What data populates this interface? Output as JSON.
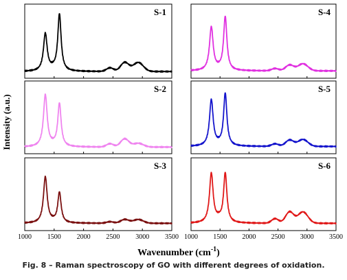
{
  "chart_data": {
    "type": "line",
    "xlabel": "Wavenumber (cm-1)",
    "xlabel_base": "Wavenumber (cm",
    "xlabel_sup": "-1",
    "xlabel_close": ")",
    "ylabel": "Intensity (a.u.)",
    "xlim": [
      1000,
      3500
    ],
    "xticks": [
      "1000",
      "1500",
      "2000",
      "2500",
      "3000",
      "3500"
    ],
    "grid": false,
    "panels": [
      {
        "id": "S-1",
        "label": "S-1",
        "color": "#000000",
        "d_height": 0.62,
        "g_height": 0.92,
        "baseline": 0.04,
        "twoD": 0.14,
        "dg": 0.14,
        "bump": 0.03
      },
      {
        "id": "S-2",
        "label": "S-2",
        "color": "#ef84ef",
        "d_height": 0.86,
        "g_height": 0.72,
        "baseline": 0.04,
        "twoD": 0.13,
        "dg": 0.06,
        "bump": 0.02
      },
      {
        "id": "S-3",
        "label": "S-3",
        "color": "#7a1010",
        "d_height": 0.78,
        "g_height": 0.53,
        "baseline": 0.05,
        "twoD": 0.06,
        "dg": 0.06,
        "bump": 0.02
      },
      {
        "id": "S-4",
        "label": "S-4",
        "color": "#e030e0",
        "d_height": 0.72,
        "g_height": 0.88,
        "baseline": 0.05,
        "twoD": 0.09,
        "dg": 0.11,
        "bump": 0.02
      },
      {
        "id": "S-5",
        "label": "S-5",
        "color": "#1414cc",
        "d_height": 0.78,
        "g_height": 0.88,
        "baseline": 0.05,
        "twoD": 0.1,
        "dg": 0.11,
        "bump": 0.02
      },
      {
        "id": "S-6",
        "label": "S-6",
        "color": "#e01818",
        "d_height": 0.83,
        "g_height": 0.83,
        "baseline": 0.05,
        "twoD": 0.18,
        "dg": 0.18,
        "bump": 0.05
      }
    ]
  },
  "caption": "Fig. 8 – Raman spectroscopy of GO with different degrees of oxidation."
}
